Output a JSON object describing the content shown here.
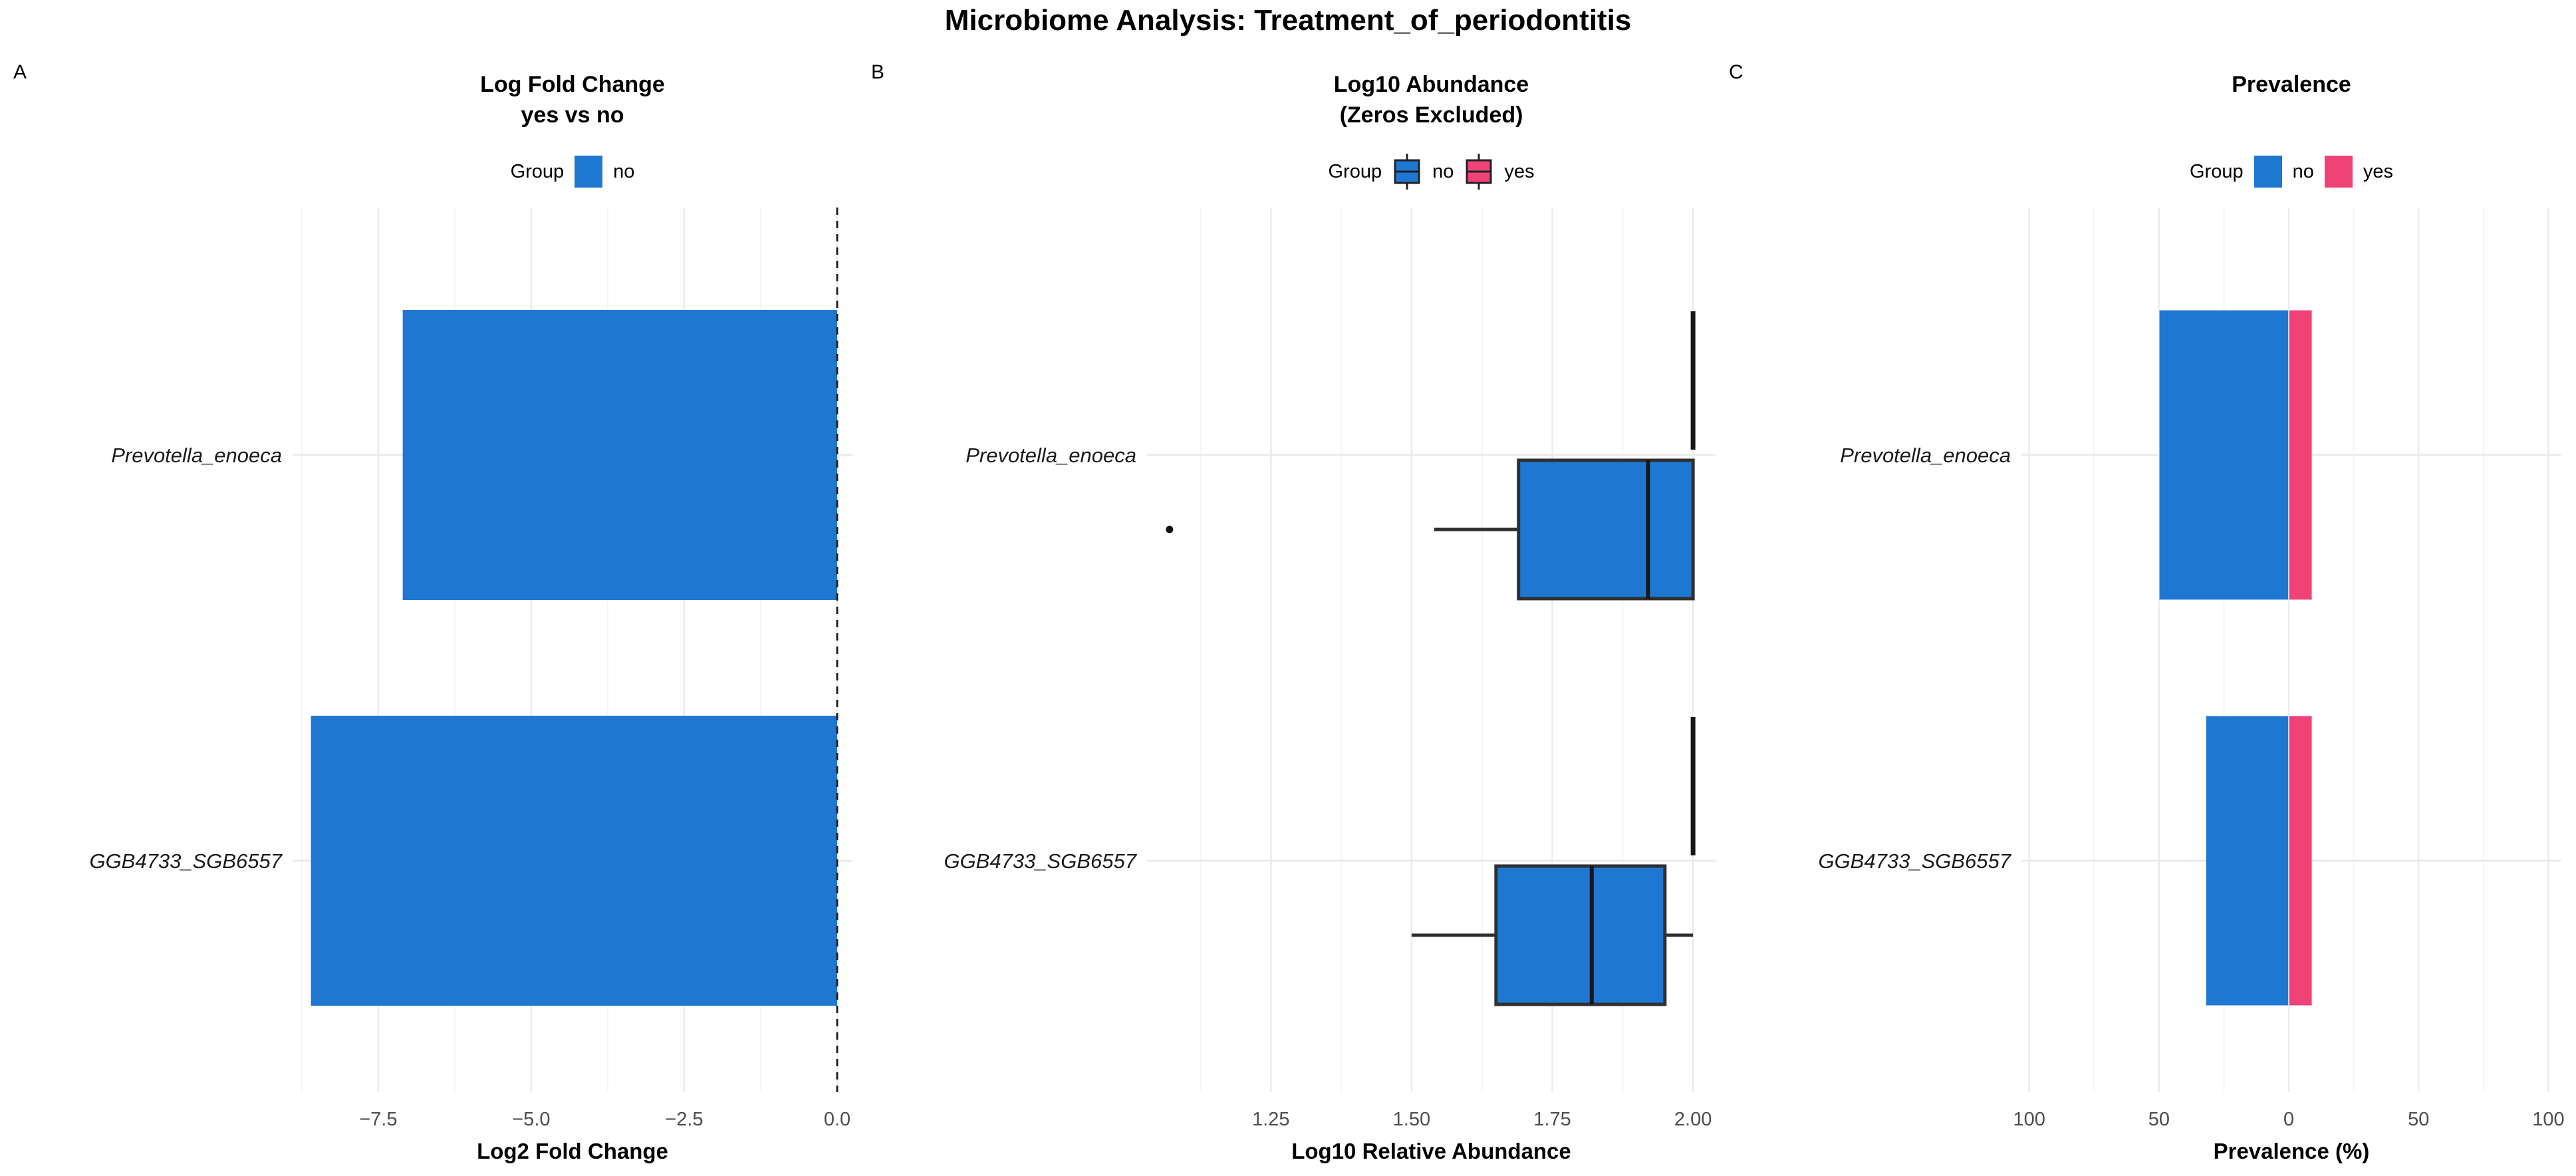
{
  "page": {
    "title": "Microbiome Analysis: Treatment_of_periodontitis"
  },
  "colors": {
    "no": "#1E78D2",
    "yes": "#EF4277",
    "box_stroke": "#2F2F2F",
    "outlier": "#111111",
    "grid_major": "#EBEBEB",
    "grid_minor": "#F5F5F5",
    "zero_line": "#222222",
    "tick_text": "#4D4D4D",
    "species_text": "#1A1A1A"
  },
  "chart_data": [
    {
      "type": "bar",
      "panel_tag": "A",
      "title_lines": [
        "Log Fold Change",
        "yes vs no"
      ],
      "legend": {
        "label": "Group",
        "key_glyph": "rect",
        "items": [
          {
            "label": "no",
            "color": "#1E78D2"
          }
        ]
      },
      "orientation": "horizontal",
      "categories": [
        "Prevotella_enoeca",
        "GGB4733_SGB6557"
      ],
      "values": [
        -7.1,
        -8.6
      ],
      "xlabel": "Log2 Fold Change",
      "xlim": [
        -8.9,
        0.25
      ],
      "xticks": [
        -7.5,
        -5.0,
        -2.5,
        0.0
      ],
      "xtick_labels": [
        "−7.5",
        "−5.0",
        "−2.5",
        "0.0"
      ],
      "minor_ticks": [
        -8.75,
        -6.25,
        -3.75,
        -1.25
      ],
      "zero_line_dashed": true,
      "grid": true,
      "legend_position": "top"
    },
    {
      "type": "boxplot",
      "panel_tag": "B",
      "title_lines": [
        "Log10 Abundance",
        "(Zeros Excluded)"
      ],
      "legend": {
        "label": "Group",
        "key_glyph": "boxplot",
        "items": [
          {
            "label": "no",
            "color": "#1E78D2"
          },
          {
            "label": "yes",
            "color": "#EF4277"
          }
        ]
      },
      "orientation": "horizontal",
      "categories": [
        "Prevotella_enoeca",
        "GGB4733_SGB6557"
      ],
      "boxes": [
        {
          "category": "Prevotella_enoeca",
          "group": "yes",
          "min": 2.0,
          "q1": 2.0,
          "median": 2.0,
          "q3": 2.0,
          "max": 2.0,
          "outliers": []
        },
        {
          "category": "Prevotella_enoeca",
          "group": "no",
          "min": 1.54,
          "q1": 1.69,
          "median": 1.92,
          "q3": 2.0,
          "max": 2.0,
          "outliers": [
            1.07
          ]
        },
        {
          "category": "GGB4733_SGB6557",
          "group": "yes",
          "min": 2.0,
          "q1": 2.0,
          "median": 2.0,
          "q3": 2.0,
          "max": 2.0,
          "outliers": []
        },
        {
          "category": "GGB4733_SGB6557",
          "group": "no",
          "min": 1.5,
          "q1": 1.65,
          "median": 1.82,
          "q3": 1.95,
          "max": 2.0,
          "outliers": []
        }
      ],
      "xlabel": "Log10 Relative Abundance",
      "xlim": [
        1.03,
        2.04
      ],
      "xticks": [
        1.25,
        1.5,
        1.75,
        2.0
      ],
      "xtick_labels": [
        "1.25",
        "1.50",
        "1.75",
        "2.00"
      ],
      "minor_ticks": [
        1.125,
        1.375,
        1.625,
        1.875
      ],
      "zero_line_dashed": false,
      "grid": true,
      "legend_position": "top"
    },
    {
      "type": "diverging_bar",
      "panel_tag": "C",
      "title_lines": [
        "Prevalence"
      ],
      "legend": {
        "label": "Group",
        "key_glyph": "rect",
        "items": [
          {
            "label": "no",
            "color": "#1E78D2"
          },
          {
            "label": "yes",
            "color": "#EF4277"
          }
        ]
      },
      "orientation": "horizontal",
      "categories": [
        "Prevotella_enoeca",
        "GGB4733_SGB6557"
      ],
      "series": [
        {
          "name": "no",
          "side": "left",
          "color": "#1E78D2",
          "values": [
            50,
            32
          ]
        },
        {
          "name": "yes",
          "side": "right",
          "color": "#EF4277",
          "values": [
            9,
            9
          ]
        }
      ],
      "xlabel": "Prevalence (%)",
      "xlim": [
        -103,
        105
      ],
      "xticks": [
        -100,
        -50,
        0,
        50,
        100
      ],
      "xtick_labels": [
        "100",
        "50",
        "0",
        "50",
        "100"
      ],
      "minor_ticks": [
        -75,
        -25,
        25,
        75
      ],
      "zero_line_dashed": false,
      "grid": true,
      "legend_position": "top"
    }
  ]
}
